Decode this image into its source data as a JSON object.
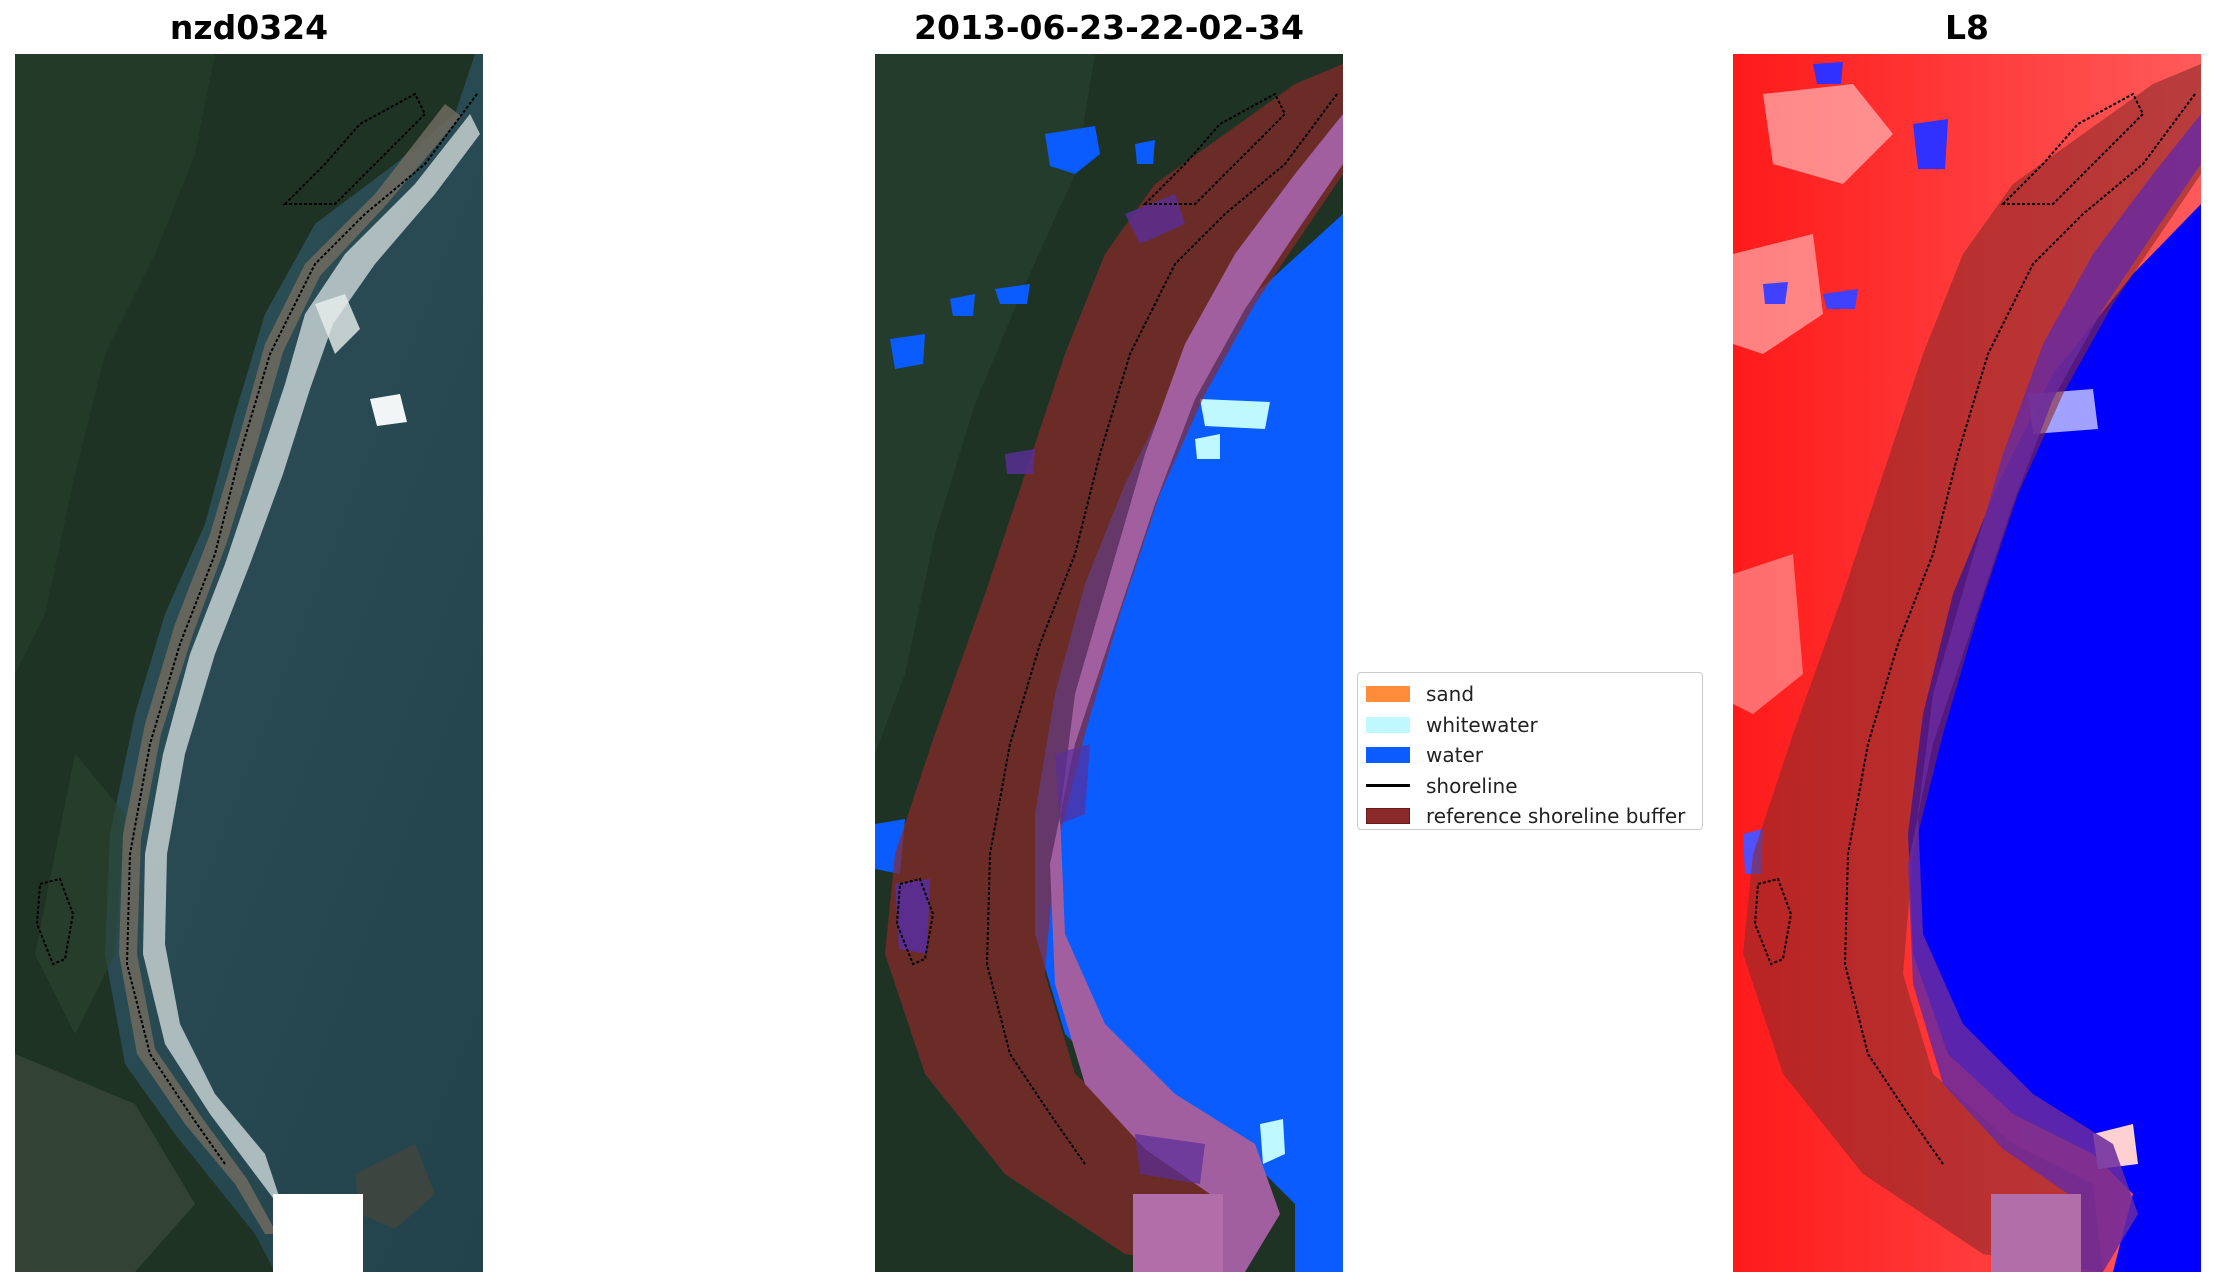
{
  "panels": [
    {
      "title": "nzd0324"
    },
    {
      "title": "2013-06-23-22-02-34"
    },
    {
      "title": "L8"
    }
  ],
  "legend": {
    "items": [
      {
        "label": "sand",
        "color": "#ff8c3a",
        "kind": "patch"
      },
      {
        "label": "whitewater",
        "color": "#bff8ff",
        "kind": "patch"
      },
      {
        "label": "water",
        "color": "#0a5cff",
        "kind": "patch"
      },
      {
        "label": "shoreline",
        "color": "#000000",
        "kind": "line"
      },
      {
        "label": "reference shoreline buffer",
        "color": "#8b2a2a",
        "kind": "patch"
      }
    ]
  },
  "colors": {
    "land": "#1f3325",
    "sea": "#26464e",
    "water_class": "#0a5cff",
    "buffer": "#8b2a2a",
    "buffer_overlay_on_water": "#a15fa0",
    "index_positive": "#ff1a1a",
    "index_negative": "#0000ff",
    "nodata": "#ffffff"
  }
}
